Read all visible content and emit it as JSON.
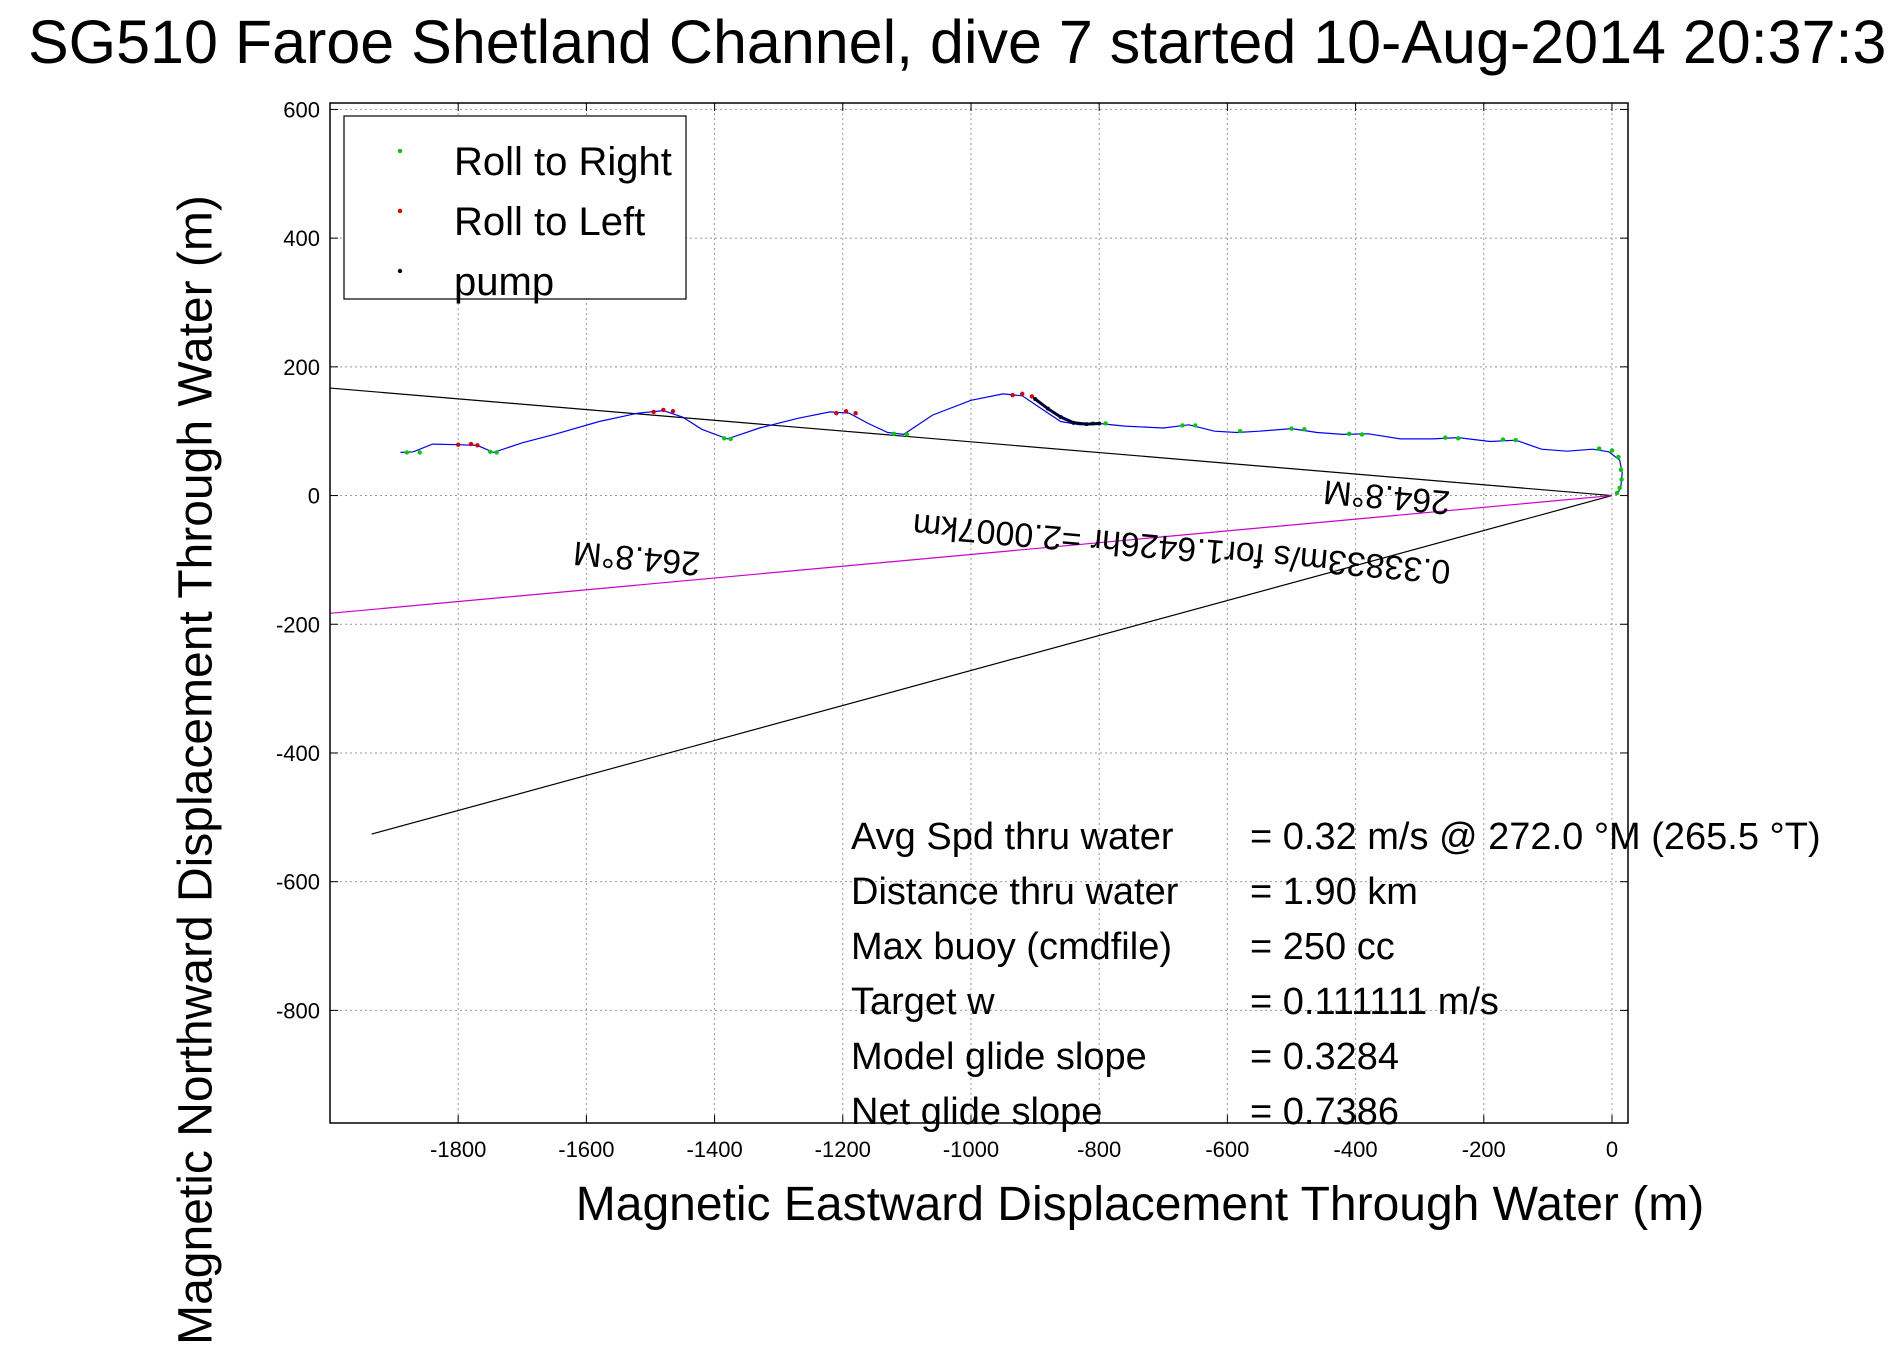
{
  "title": "SG510 Faroe Shetland Channel, dive 7 started 10-Aug-2014 20:37:3",
  "chart_data": {
    "type": "scatter",
    "xlabel": "Magnetic Eastward Displacement Through Water (m)",
    "ylabel": "Magnetic Northward Displacement Through Water (m)",
    "xlim": [
      -2000,
      25
    ],
    "ylim": [
      -975,
      610
    ],
    "xticks": [
      -1800,
      -1600,
      -1400,
      -1200,
      -1000,
      -800,
      -600,
      -400,
      -200,
      0
    ],
    "yticks": [
      600,
      400,
      200,
      0,
      -200,
      -400,
      -600,
      -800
    ],
    "grid": true,
    "legend_position": "top-left",
    "legend": [
      {
        "label": "Roll to Right",
        "color": "#00cc00"
      },
      {
        "label": "Roll to Left",
        "color": "#dd0000"
      },
      {
        "label": "pump",
        "color": "#000033"
      }
    ],
    "track": {
      "color": "#0000ff",
      "x": [
        -1890,
        -1870,
        -1840,
        -1800,
        -1770,
        -1745,
        -1700,
        -1650,
        -1580,
        -1520,
        -1480,
        -1450,
        -1420,
        -1380,
        -1330,
        -1270,
        -1220,
        -1190,
        -1160,
        -1130,
        -1105,
        -1060,
        -1000,
        -950,
        -920,
        -890,
        -860,
        -830,
        -800,
        -760,
        -700,
        -660,
        -620,
        -585,
        -550,
        -500,
        -460,
        -420,
        -380,
        -330,
        -280,
        -240,
        -190,
        -150,
        -110,
        -70,
        -30,
        -5,
        12,
        16,
        14,
        10,
        5
      ],
      "y": [
        67,
        68,
        80,
        79,
        78,
        67,
        82,
        95,
        115,
        128,
        132,
        122,
        103,
        88,
        105,
        120,
        130,
        128,
        112,
        98,
        95,
        125,
        148,
        158,
        155,
        135,
        115,
        110,
        112,
        108,
        105,
        110,
        100,
        98,
        100,
        104,
        98,
        95,
        96,
        88,
        88,
        90,
        84,
        86,
        72,
        69,
        72,
        68,
        55,
        35,
        15,
        5,
        2
      ]
    },
    "roll_right_points": {
      "x": [
        -1880,
        -1860,
        -1750,
        -1740,
        -1385,
        -1375,
        -1120,
        -1100,
        -810,
        -790,
        -670,
        -650,
        -580,
        -500,
        -480,
        -410,
        -390,
        -260,
        -240,
        -170,
        -150,
        -20,
        0,
        10,
        14,
        15,
        12,
        8
      ],
      "y": [
        67,
        67,
        68,
        67,
        89,
        88,
        96,
        95,
        112,
        112,
        109,
        109,
        100,
        104,
        103,
        96,
        95,
        90,
        89,
        87,
        86,
        73,
        70,
        60,
        40,
        25,
        12,
        4
      ]
    },
    "roll_left_points": {
      "x": [
        -1800,
        -1780,
        -1770,
        -1495,
        -1480,
        -1465,
        -1210,
        -1195,
        -1180,
        -935,
        -920,
        -905
      ],
      "y": [
        79,
        80,
        78,
        130,
        133,
        131,
        128,
        131,
        128,
        156,
        158,
        154
      ]
    },
    "pump_points": {
      "x": [
        -900,
        -880,
        -860,
        -840,
        -820,
        -800
      ],
      "y": [
        150,
        135,
        122,
        113,
        111,
        112
      ]
    },
    "lines": [
      {
        "color": "#000000",
        "x": [
          -2000,
          0
        ],
        "y": [
          167,
          0
        ]
      },
      {
        "color": "#000000",
        "x": [
          -1935,
          0
        ],
        "y": [
          -526,
          0
        ]
      },
      {
        "color": "#cc00cc",
        "x": [
          -2000,
          0
        ],
        "y": [
          -183,
          0
        ]
      }
    ],
    "annotations": [
      {
        "text": "264.8°M",
        "x": -1520,
        "y": -80,
        "rotate": 185
      },
      {
        "text": "264.8°M",
        "x": -350,
        "y": 15,
        "rotate": 185
      },
      {
        "text": "0.33833m/s for1.6426hr =2.0007km",
        "x": -670,
        "y": -65,
        "rotate": 185
      }
    ]
  },
  "stats": [
    {
      "label": "Avg Spd thru water",
      "value": "=  0.32 m/s @ 272.0 °M (265.5 °T)"
    },
    {
      "label": "Distance thru water",
      "value": "=  1.90 km"
    },
    {
      "label": "Max buoy (cmdfile)",
      "value": "= 250 cc"
    },
    {
      "label": "Target w",
      "value": "= 0.111111 m/s"
    },
    {
      "label": "Model glide slope",
      "value": "= 0.3284"
    },
    {
      "label": "Net glide slope",
      "value": "= 0.7386"
    }
  ]
}
